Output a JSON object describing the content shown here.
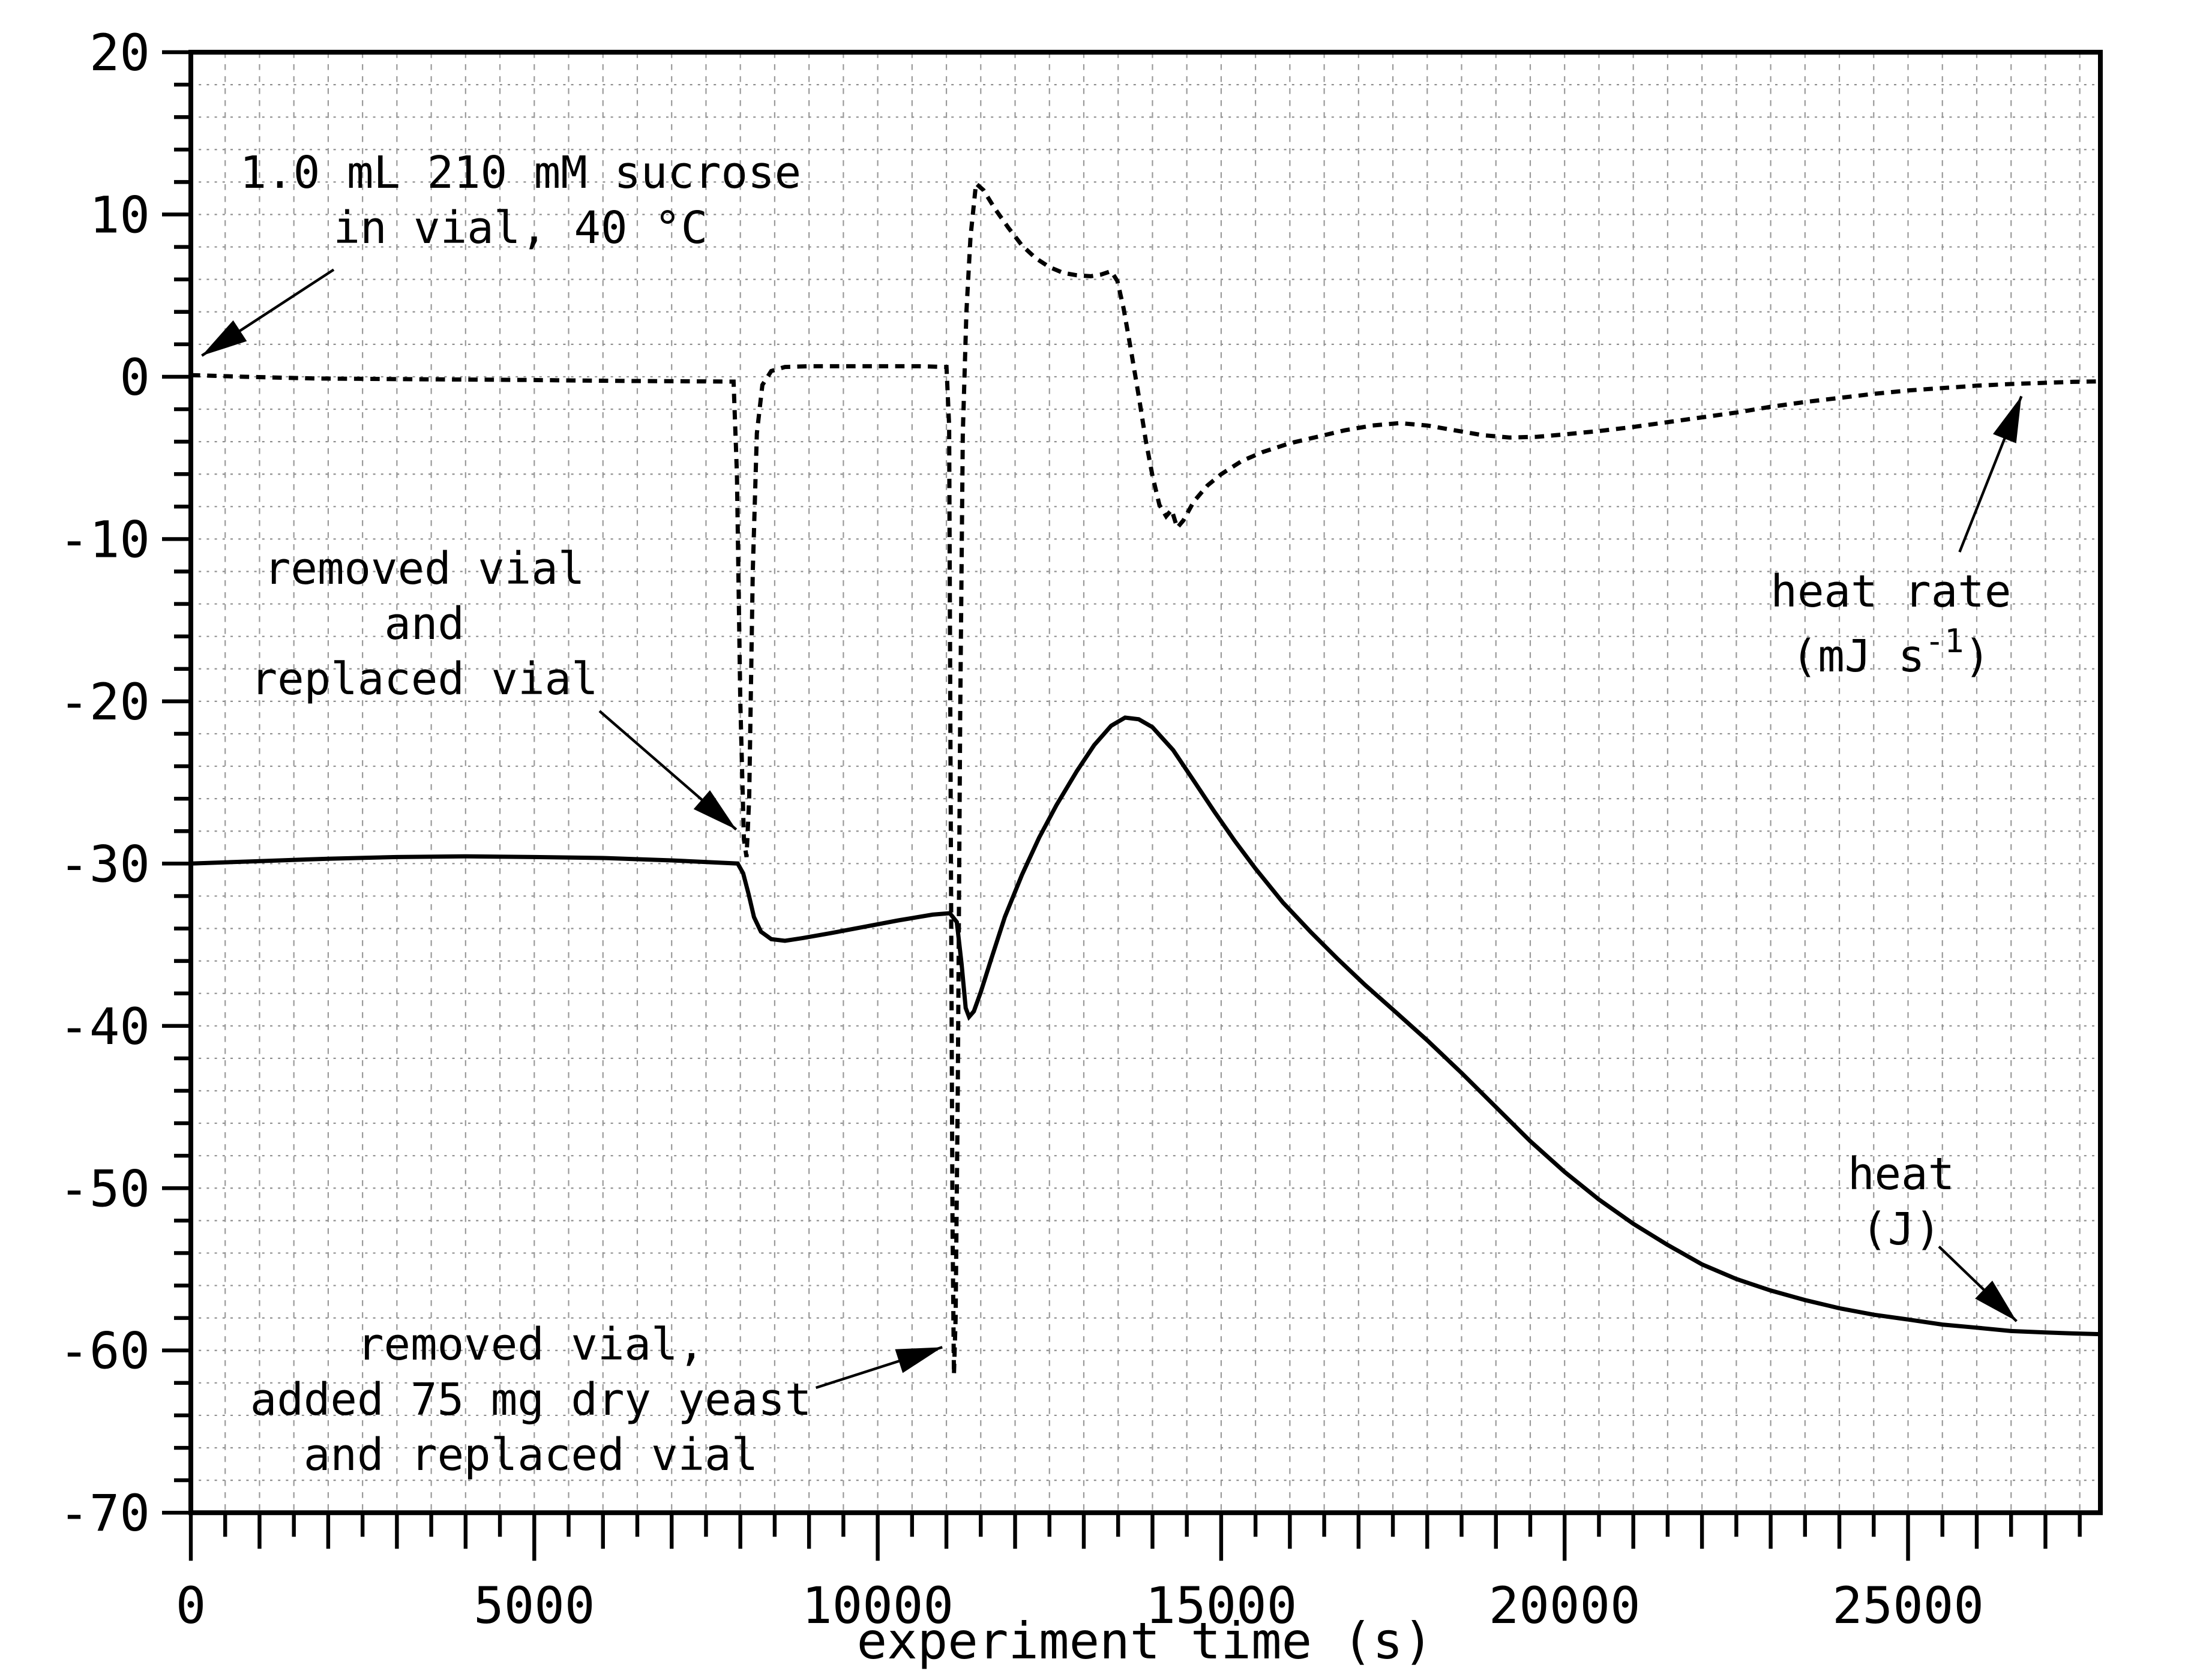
{
  "chart_data": {
    "type": "line",
    "title": "",
    "xlabel": "experiment time (s)",
    "ylabel": "",
    "xlim": [
      0,
      27800
    ],
    "ylim": [
      -70,
      20
    ],
    "grid": true,
    "legend_position": "none",
    "x_major_ticks": [
      0,
      5000,
      10000,
      15000,
      20000,
      25000
    ],
    "y_major_ticks": [
      20,
      10,
      0,
      -10,
      -20,
      -30,
      -40,
      -50,
      -60,
      -70
    ],
    "x_minor_step": 500,
    "y_minor_step": 2,
    "series": [
      {
        "name": "heat rate",
        "unit": "mJ s-1",
        "style": "dashed",
        "color": "#000000",
        "points": [
          [
            0,
            0.1
          ],
          [
            800,
            0
          ],
          [
            1800,
            -0.1
          ],
          [
            3200,
            -0.15
          ],
          [
            4800,
            -0.2
          ],
          [
            6200,
            -0.25
          ],
          [
            7400,
            -0.28
          ],
          [
            7900,
            -0.3
          ],
          [
            7950,
            -6
          ],
          [
            8000,
            -20
          ],
          [
            8050,
            -28.5
          ],
          [
            8090,
            -29.6
          ],
          [
            8130,
            -26
          ],
          [
            8180,
            -12
          ],
          [
            8240,
            -3.5
          ],
          [
            8320,
            -0.5
          ],
          [
            8450,
            0.35
          ],
          [
            8650,
            0.6
          ],
          [
            9000,
            0.65
          ],
          [
            9800,
            0.65
          ],
          [
            10600,
            0.65
          ],
          [
            11000,
            0.6
          ],
          [
            11040,
            -3
          ],
          [
            11065,
            -28
          ],
          [
            11090,
            -52
          ],
          [
            11110,
            -61.5
          ],
          [
            11135,
            -58
          ],
          [
            11165,
            -44
          ],
          [
            11200,
            -21
          ],
          [
            11240,
            -3.5
          ],
          [
            11290,
            4
          ],
          [
            11350,
            8.6
          ],
          [
            11430,
            11.9
          ],
          [
            11540,
            11.5
          ],
          [
            11700,
            10.4
          ],
          [
            11900,
            9.2
          ],
          [
            12100,
            8.1
          ],
          [
            12300,
            7.3
          ],
          [
            12500,
            6.75
          ],
          [
            12700,
            6.4
          ],
          [
            12900,
            6.25
          ],
          [
            13100,
            6.2
          ],
          [
            13250,
            6.3
          ],
          [
            13400,
            6.5
          ],
          [
            13490,
            5.9
          ],
          [
            13580,
            4.2
          ],
          [
            13690,
            1.6
          ],
          [
            13800,
            -1.2
          ],
          [
            13900,
            -3.9
          ],
          [
            14000,
            -6.1
          ],
          [
            14100,
            -7.9
          ],
          [
            14200,
            -8.6
          ],
          [
            14280,
            -8.2
          ],
          [
            14360,
            -9.3
          ],
          [
            14450,
            -8.85
          ],
          [
            14600,
            -7.7
          ],
          [
            14800,
            -6.7
          ],
          [
            15000,
            -6
          ],
          [
            15300,
            -5.2
          ],
          [
            15600,
            -4.65
          ],
          [
            16000,
            -4.1
          ],
          [
            16400,
            -3.7
          ],
          [
            16800,
            -3.3
          ],
          [
            17200,
            -3
          ],
          [
            17600,
            -2.85
          ],
          [
            18000,
            -3
          ],
          [
            18400,
            -3.3
          ],
          [
            18800,
            -3.6
          ],
          [
            19200,
            -3.75
          ],
          [
            19600,
            -3.7
          ],
          [
            20000,
            -3.55
          ],
          [
            20500,
            -3.35
          ],
          [
            21000,
            -3.1
          ],
          [
            21500,
            -2.8
          ],
          [
            22000,
            -2.5
          ],
          [
            22500,
            -2.2
          ],
          [
            23000,
            -1.85
          ],
          [
            23500,
            -1.55
          ],
          [
            24000,
            -1.3
          ],
          [
            24500,
            -1.05
          ],
          [
            25000,
            -0.85
          ],
          [
            25500,
            -0.7
          ],
          [
            26000,
            -0.55
          ],
          [
            26500,
            -0.45
          ],
          [
            27000,
            -0.37
          ],
          [
            27400,
            -0.32
          ],
          [
            27800,
            -0.28
          ]
        ]
      },
      {
        "name": "heat",
        "unit": "J",
        "style": "solid",
        "color": "#000000",
        "points": [
          [
            0,
            -30
          ],
          [
            1000,
            -29.85
          ],
          [
            2000,
            -29.7
          ],
          [
            3000,
            -29.6
          ],
          [
            4000,
            -29.55
          ],
          [
            5000,
            -29.6
          ],
          [
            6000,
            -29.65
          ],
          [
            7000,
            -29.8
          ],
          [
            7960,
            -30
          ],
          [
            8040,
            -30.6
          ],
          [
            8120,
            -31.9
          ],
          [
            8200,
            -33.3
          ],
          [
            8300,
            -34.2
          ],
          [
            8450,
            -34.65
          ],
          [
            8650,
            -34.75
          ],
          [
            8900,
            -34.6
          ],
          [
            9300,
            -34.3
          ],
          [
            9800,
            -33.9
          ],
          [
            10300,
            -33.5
          ],
          [
            10800,
            -33.15
          ],
          [
            11050,
            -33.05
          ],
          [
            11150,
            -33.6
          ],
          [
            11220,
            -36.2
          ],
          [
            11280,
            -38.9
          ],
          [
            11330,
            -39.45
          ],
          [
            11400,
            -39.1
          ],
          [
            11500,
            -37.9
          ],
          [
            11650,
            -35.9
          ],
          [
            11850,
            -33.3
          ],
          [
            12100,
            -30.7
          ],
          [
            12350,
            -28.4
          ],
          [
            12600,
            -26.4
          ],
          [
            12900,
            -24.3
          ],
          [
            13150,
            -22.7
          ],
          [
            13400,
            -21.5
          ],
          [
            13600,
            -21
          ],
          [
            13800,
            -21.1
          ],
          [
            14000,
            -21.6
          ],
          [
            14300,
            -23
          ],
          [
            14600,
            -24.9
          ],
          [
            14900,
            -26.8
          ],
          [
            15200,
            -28.6
          ],
          [
            15500,
            -30.3
          ],
          [
            15900,
            -32.4
          ],
          [
            16300,
            -34.2
          ],
          [
            16700,
            -35.9
          ],
          [
            17100,
            -37.5
          ],
          [
            17500,
            -39
          ],
          [
            18000,
            -40.9
          ],
          [
            18500,
            -42.9
          ],
          [
            19000,
            -45
          ],
          [
            19500,
            -47.1
          ],
          [
            20000,
            -49
          ],
          [
            20500,
            -50.7
          ],
          [
            21000,
            -52.2
          ],
          [
            21500,
            -53.5
          ],
          [
            22000,
            -54.7
          ],
          [
            22500,
            -55.6
          ],
          [
            23000,
            -56.3
          ],
          [
            23500,
            -56.9
          ],
          [
            24000,
            -57.4
          ],
          [
            24500,
            -57.8
          ],
          [
            25000,
            -58.1
          ],
          [
            25500,
            -58.4
          ],
          [
            26000,
            -58.6
          ],
          [
            26500,
            -58.8
          ],
          [
            27000,
            -58.9
          ],
          [
            27400,
            -58.95
          ],
          [
            27800,
            -59
          ]
        ]
      }
    ],
    "annotations": [
      {
        "id": "sucrose-note",
        "lines": [
          "1.0 mL 210 mM sucrose",
          "in vial, 40 °C"
        ],
        "text_pos": [
          4800,
          10.9
        ],
        "line_gap": 23,
        "arrow": {
          "from": [
            2080,
            6.6
          ],
          "to": [
            160,
            1.3
          ]
        }
      },
      {
        "id": "vial-swap-note",
        "lines": [
          "removed vial",
          "and",
          "replaced vial"
        ],
        "text_pos": [
          3400,
          -15.2
        ],
        "line_gap": 23,
        "arrow": {
          "from": [
            5950,
            -20.6
          ],
          "to": [
            7940,
            -27.9
          ]
        }
      },
      {
        "id": "yeast-note",
        "lines": [
          "removed vial,",
          "added 75 mg dry yeast",
          "and replaced vial"
        ],
        "text_pos": [
          4950,
          -63.0
        ],
        "line_gap": 23,
        "arrow": {
          "from": [
            9100,
            -62.3
          ],
          "to": [
            10940,
            -59.8
          ]
        }
      },
      {
        "id": "heat-rate-label",
        "lines": [
          "heat rate",
          {
            "pre": "(mJ s",
            "sup": "-1",
            "post": ")"
          }
        ],
        "text_pos": [
          24750,
          -15.2
        ],
        "line_gap": 27,
        "arrow": {
          "from": [
            25750,
            -10.8
          ],
          "to": [
            26650,
            -1.2
          ]
        }
      },
      {
        "id": "heat-label",
        "lines": [
          "heat",
          "(J)"
        ],
        "text_pos": [
          24900,
          -50.8
        ],
        "line_gap": 23,
        "arrow": {
          "from": [
            25450,
            -53.6
          ],
          "to": [
            26580,
            -58.2
          ]
        }
      }
    ]
  }
}
